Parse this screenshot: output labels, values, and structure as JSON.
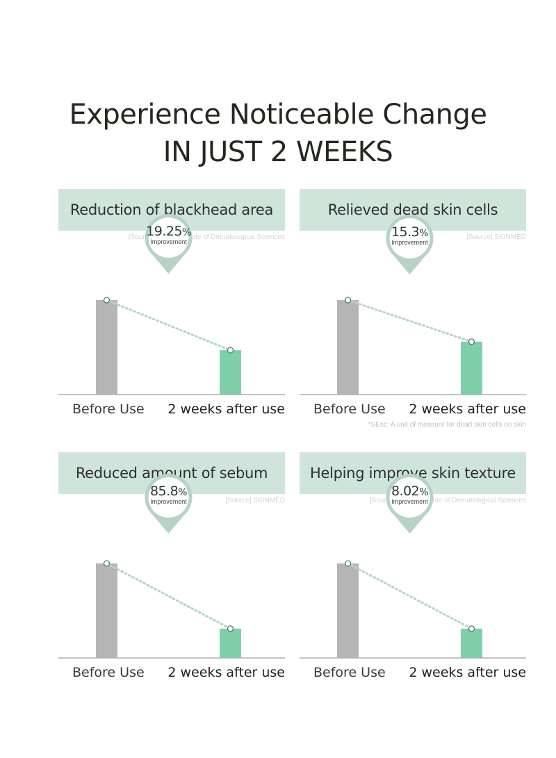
{
  "title": {
    "line1": "Experience Noticeable Change",
    "line2": "IN JUST 2 WEEKS"
  },
  "colors": {
    "header_bg": "#cfe5dc",
    "before_bar": "#b5b5b5",
    "after_bar": "#7ecfaa",
    "bubble": "#b7d3c6",
    "connector": "#b7d3c6",
    "axis": "#b0b0b0"
  },
  "chart_data": [
    {
      "type": "bar",
      "title": "Reduction of blackhead area",
      "source": "[Source] Korea Institute of Dematological Sciences",
      "categories": [
        "Before Use",
        "2 weeks after use"
      ],
      "values": [
        100,
        47
      ],
      "improvement": {
        "value": "19.25",
        "unit": "%",
        "label": "Improvement"
      },
      "footnote": ""
    },
    {
      "type": "bar",
      "title": "Relieved dead skin cells",
      "source": "[Source] SKINMED",
      "categories": [
        "Before Use",
        "2 weeks after use"
      ],
      "values": [
        100,
        56
      ],
      "improvement": {
        "value": "15.3",
        "unit": "%",
        "label": "Improvement"
      },
      "footnote": "*SEsc: A unit of measure for dead skin cells on skin"
    },
    {
      "type": "bar",
      "title": "Reduced amount of sebum",
      "source": "[Source] SKINMED",
      "categories": [
        "Before Use",
        "2 weeks after use"
      ],
      "values": [
        100,
        31
      ],
      "improvement": {
        "value": "85.8",
        "unit": "%",
        "label": "Improvement"
      },
      "footnote": ""
    },
    {
      "type": "bar",
      "title": "Helping improve skin texture",
      "source": "[Source] Korea Institute of Dematological Sciences",
      "categories": [
        "Before Use",
        "2 weeks after use"
      ],
      "values": [
        100,
        31
      ],
      "improvement": {
        "value": "8.02",
        "unit": "%",
        "label": "Improvement"
      },
      "footnote": ""
    }
  ]
}
